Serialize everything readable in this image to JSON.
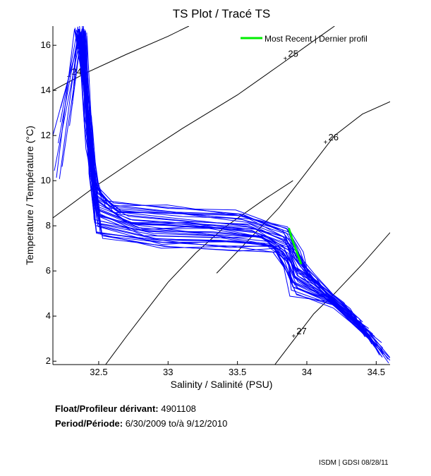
{
  "chart_data": {
    "type": "line",
    "title": "TS Plot / Tracé TS",
    "xlabel": "Salinity / Salinité (PSU)",
    "ylabel": "Temperature / Température (°C)",
    "xlim": [
      32.17,
      34.6
    ],
    "ylim": [
      1.85,
      16.85
    ],
    "xticks": [
      32.5,
      33,
      33.5,
      34,
      34.5
    ],
    "xtick_labels": [
      "32.5",
      "33",
      "33.5",
      "34",
      "34.5"
    ],
    "yticks": [
      2,
      4,
      6,
      8,
      10,
      12,
      14,
      16
    ],
    "ytick_labels": [
      "2",
      "4",
      "6",
      "8",
      "10",
      "12",
      "14",
      "16"
    ],
    "grid": false,
    "legend": {
      "position": "top-right",
      "entries": [
        {
          "label": "Most Recent | Dernier profil",
          "color": "#00ee00"
        }
      ]
    },
    "density_contours": [
      {
        "label": "24",
        "label_at": [
          32.3,
          14.6
        ],
        "points": [
          [
            32.17,
            14.0
          ],
          [
            32.4,
            14.75
          ],
          [
            32.7,
            15.6
          ],
          [
            33.0,
            16.4
          ],
          [
            33.15,
            16.85
          ]
        ]
      },
      {
        "label": "25",
        "label_at": [
          33.86,
          15.4
        ],
        "points": [
          [
            32.17,
            8.35
          ],
          [
            32.5,
            9.85
          ],
          [
            32.8,
            11.1
          ],
          [
            33.1,
            12.3
          ],
          [
            33.5,
            13.8
          ],
          [
            33.8,
            15.1
          ],
          [
            34.05,
            16.2
          ],
          [
            34.2,
            16.85
          ]
        ]
      },
      {
        "label": "26",
        "label_at": [
          34.15,
          11.7
        ],
        "points": [
          [
            33.35,
            5.9
          ],
          [
            33.6,
            7.5
          ],
          [
            33.8,
            8.8
          ],
          [
            34.0,
            10.4
          ],
          [
            34.2,
            12.0
          ],
          [
            34.4,
            12.95
          ],
          [
            34.6,
            13.5
          ]
        ]
      },
      {
        "label": "27",
        "label_at": [
          33.92,
          3.1
        ],
        "points": [
          [
            32.55,
            1.85
          ],
          [
            32.7,
            3.1
          ],
          [
            32.85,
            4.3
          ],
          [
            33.0,
            5.5
          ],
          [
            33.2,
            6.8
          ],
          [
            33.4,
            7.9
          ],
          [
            33.7,
            9.2
          ],
          [
            33.9,
            10.0
          ]
        ]
      },
      {
        "label": "",
        "points": [
          [
            33.77,
            1.85
          ],
          [
            33.9,
            2.9
          ],
          [
            34.05,
            4.1
          ],
          [
            34.2,
            5.0
          ],
          [
            34.4,
            6.3
          ],
          [
            34.6,
            7.7
          ]
        ]
      }
    ],
    "series": [
      {
        "name": "historical profiles",
        "color": "#0000ff",
        "profile_count": 40,
        "envelope": [
          [
            32.35,
            16.8
          ],
          [
            32.42,
            13.0
          ],
          [
            32.48,
            10.0
          ],
          [
            32.55,
            9.0
          ],
          [
            33.0,
            8.8
          ],
          [
            33.5,
            8.6
          ],
          [
            33.85,
            8.0
          ],
          [
            33.95,
            7.0
          ],
          [
            34.0,
            6.0
          ],
          [
            34.15,
            5.0
          ],
          [
            34.35,
            4.0
          ],
          [
            34.5,
            3.0
          ],
          [
            34.6,
            1.9
          ]
        ],
        "lower_path": [
          [
            32.4,
            16.5
          ],
          [
            32.45,
            10.0
          ],
          [
            32.5,
            7.4
          ],
          [
            33.0,
            7.0
          ],
          [
            33.5,
            7.0
          ],
          [
            33.8,
            6.8
          ],
          [
            33.85,
            6.0
          ],
          [
            33.9,
            5.0
          ],
          [
            34.2,
            4.5
          ],
          [
            34.4,
            3.5
          ],
          [
            34.6,
            1.9
          ]
        ]
      },
      {
        "name": "Most Recent | Dernier profil",
        "color": "#00ee00",
        "x": [
          33.87,
          33.9,
          33.93,
          33.96
        ],
        "y": [
          7.9,
          7.3,
          6.8,
          6.3
        ]
      }
    ]
  },
  "info": {
    "float_label": "Float/Profileur dérivant:",
    "float_value": "4901108",
    "period_label": "Period/Période:",
    "period_start": "6/30/2009",
    "period_sep": "to/à",
    "period_end": "9/12/2010"
  },
  "footer": "ISDM | GDSI  08/28/11"
}
